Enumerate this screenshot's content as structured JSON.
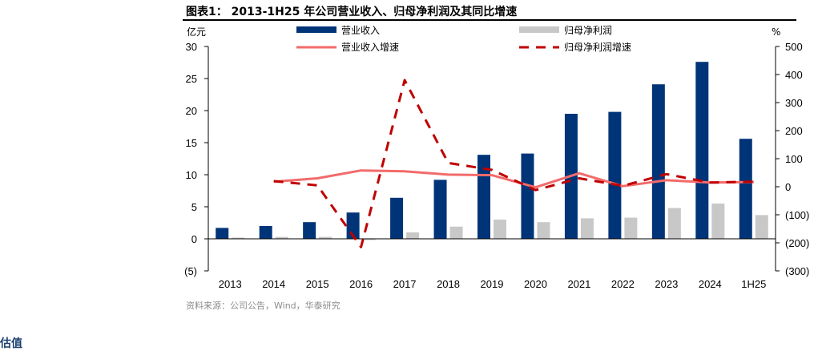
{
  "header": {
    "title": "图表1： 2013-1H25 年公司营业收入、归母净利润及其同比增速"
  },
  "chart_data": {
    "type": "bar",
    "categories": [
      "2013",
      "2014",
      "2015",
      "2016",
      "2017",
      "2018",
      "2019",
      "2020",
      "2021",
      "2022",
      "2023",
      "2024",
      "1H25"
    ],
    "left_axis": {
      "unit": "亿元",
      "ylim": [
        -5,
        30
      ],
      "ticks": [
        -5,
        0,
        5,
        10,
        15,
        20,
        25,
        30
      ],
      "tick_labels": [
        "(5)",
        "0",
        "5",
        "10",
        "15",
        "20",
        "25",
        "30"
      ]
    },
    "right_axis": {
      "unit": "%",
      "ylim": [
        -300,
        500
      ],
      "ticks": [
        -300,
        -200,
        -100,
        0,
        100,
        200,
        300,
        400,
        500
      ],
      "tick_labels": [
        "(300)",
        "(200)",
        "(100)",
        "0",
        "100",
        "200",
        "300",
        "400",
        "500"
      ]
    },
    "series": [
      {
        "name": "营业收入",
        "kind": "bar",
        "axis": "left",
        "color": "#003478",
        "values": [
          1.7,
          2.0,
          2.6,
          4.1,
          6.4,
          9.2,
          13.1,
          13.3,
          19.5,
          19.8,
          24.1,
          27.6,
          15.6
        ]
      },
      {
        "name": "归母净利润",
        "kind": "bar",
        "axis": "left",
        "color": "#c8c8c8",
        "values": [
          0.2,
          0.3,
          0.3,
          -0.2,
          1.0,
          1.9,
          3.0,
          2.6,
          3.2,
          3.3,
          4.8,
          5.5,
          3.7
        ]
      },
      {
        "name": "营业收入增速",
        "kind": "line",
        "axis": "right",
        "color": "#f26b6b",
        "dashed": false,
        "values": [
          null,
          18,
          30,
          58,
          55,
          43,
          41,
          -2,
          48,
          2,
          23,
          15,
          17
        ]
      },
      {
        "name": "归母净利润增速",
        "kind": "line",
        "axis": "right",
        "color": "#c00000",
        "dashed": true,
        "values": [
          null,
          20,
          5,
          -215,
          380,
          85,
          60,
          -12,
          30,
          3,
          45,
          15,
          18
        ]
      }
    ],
    "legend_placement": "top"
  },
  "footer": {
    "source": "资料来源：公司公告，Wind，华泰研究",
    "next_heading": "估值"
  }
}
